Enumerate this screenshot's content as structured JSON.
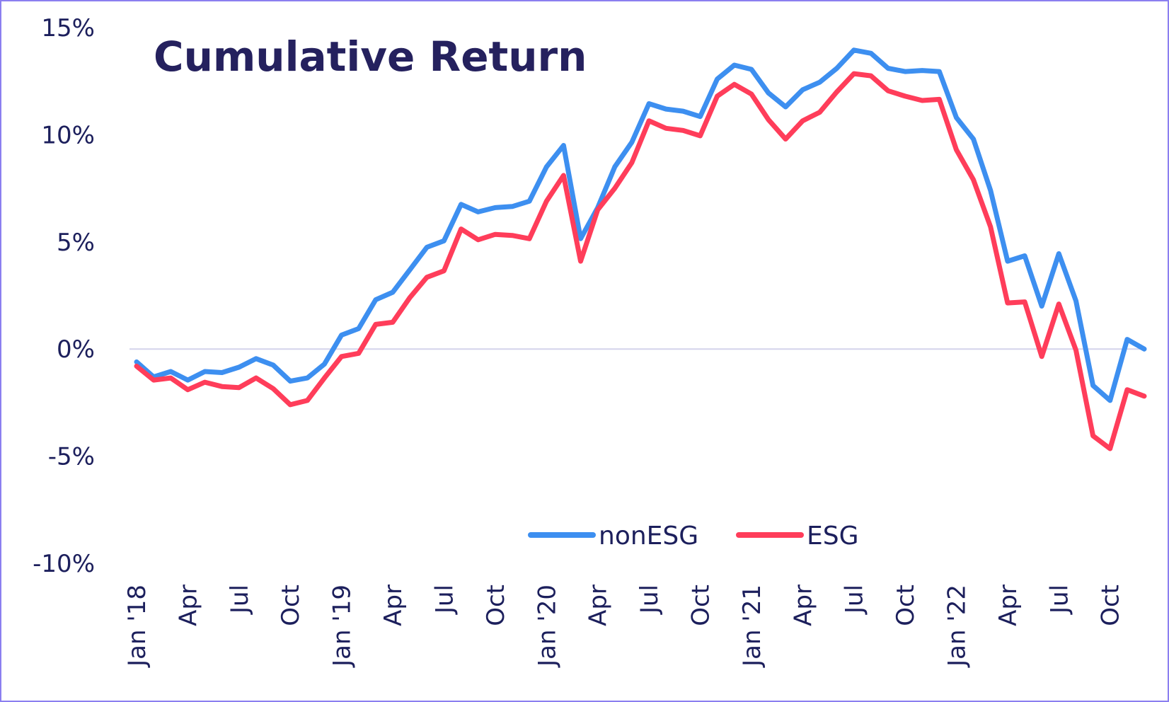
{
  "chart_data": {
    "type": "line",
    "title": "Cumulative Return",
    "xlabel": "",
    "ylabel": "",
    "ylim": [
      -10,
      15
    ],
    "yticks": [
      -10,
      -5,
      0,
      5,
      10,
      15
    ],
    "ytick_labels": [
      "-10%",
      "-5%",
      "0%",
      "5%",
      "10%",
      "15%"
    ],
    "grid": "zero line only",
    "legend_position": "bottom-right",
    "x": [
      "Jan '18",
      "Feb",
      "Mar",
      "Apr",
      "May",
      "Jun",
      "Jul",
      "Aug",
      "Sep",
      "Oct",
      "Nov",
      "Dec",
      "Jan '19",
      "Feb",
      "Mar",
      "Apr",
      "May",
      "Jun",
      "Jul",
      "Aug",
      "Sep",
      "Oct",
      "Nov",
      "Dec",
      "Jan '20",
      "Feb",
      "Mar",
      "Apr",
      "May",
      "Jun",
      "Jul",
      "Aug",
      "Sep",
      "Oct",
      "Nov",
      "Dec",
      "Jan '21",
      "Feb",
      "Mar",
      "Apr",
      "May",
      "Jun",
      "Jul",
      "Aug",
      "Sep",
      "Oct",
      "Nov",
      "Dec",
      "Jan '22",
      "Feb",
      "Mar",
      "Apr",
      "May",
      "Jun",
      "Jul",
      "Aug",
      "Sep",
      "Oct",
      "Nov",
      "Dec"
    ],
    "xtick_labels": [
      {
        "index": 0,
        "label": "Jan '18"
      },
      {
        "index": 3,
        "label": "Apr"
      },
      {
        "index": 6,
        "label": "Jul"
      },
      {
        "index": 9,
        "label": "Oct"
      },
      {
        "index": 12,
        "label": "Jan '19"
      },
      {
        "index": 15,
        "label": "Apr"
      },
      {
        "index": 18,
        "label": "Jul"
      },
      {
        "index": 21,
        "label": "Oct"
      },
      {
        "index": 24,
        "label": "Jan '20"
      },
      {
        "index": 27,
        "label": "Apr"
      },
      {
        "index": 30,
        "label": "Jul"
      },
      {
        "index": 33,
        "label": "Oct"
      },
      {
        "index": 36,
        "label": "Jan '21"
      },
      {
        "index": 39,
        "label": "Apr"
      },
      {
        "index": 42,
        "label": "Jul"
      },
      {
        "index": 45,
        "label": "Oct"
      },
      {
        "index": 48,
        "label": "Jan '22"
      },
      {
        "index": 51,
        "label": "Apr"
      },
      {
        "index": 54,
        "label": "Jul"
      },
      {
        "index": 57,
        "label": "Oct"
      }
    ],
    "series": [
      {
        "name": "nonESG",
        "color": "#3d8ff0",
        "values": [
          -0.6,
          -1.3,
          -1.05,
          -1.45,
          -1.05,
          -1.1,
          -0.85,
          -0.45,
          -0.75,
          -1.5,
          -1.35,
          -0.7,
          0.65,
          0.95,
          2.3,
          2.65,
          3.7,
          4.75,
          5.05,
          6.75,
          6.4,
          6.6,
          6.65,
          6.9,
          8.5,
          9.5,
          5.15,
          6.6,
          8.5,
          9.65,
          11.45,
          11.2,
          11.1,
          10.85,
          12.6,
          13.25,
          13.05,
          11.95,
          11.3,
          12.1,
          12.45,
          13.1,
          13.95,
          13.8,
          13.1,
          12.95,
          13.0,
          12.95,
          10.8,
          9.8,
          7.4,
          4.1,
          4.35,
          2.0,
          4.45,
          2.25,
          -1.7,
          -2.4,
          0.45,
          0.0
        ]
      },
      {
        "name": "ESG",
        "color": "#ff3d5a",
        "values": [
          -0.8,
          -1.45,
          -1.35,
          -1.9,
          -1.55,
          -1.75,
          -1.8,
          -1.35,
          -1.85,
          -2.6,
          -2.4,
          -1.35,
          -0.35,
          -0.2,
          1.15,
          1.25,
          2.4,
          3.35,
          3.65,
          5.6,
          5.1,
          5.35,
          5.3,
          5.15,
          6.9,
          8.1,
          4.1,
          6.5,
          7.5,
          8.7,
          10.65,
          10.3,
          10.2,
          9.95,
          11.8,
          12.35,
          11.9,
          10.7,
          9.8,
          10.65,
          11.05,
          12.0,
          12.85,
          12.75,
          12.05,
          11.8,
          11.6,
          11.65,
          9.3,
          7.9,
          5.7,
          2.15,
          2.2,
          -0.35,
          2.1,
          -0.05,
          -4.05,
          -4.65,
          -1.9,
          -2.2
        ]
      }
    ]
  }
}
